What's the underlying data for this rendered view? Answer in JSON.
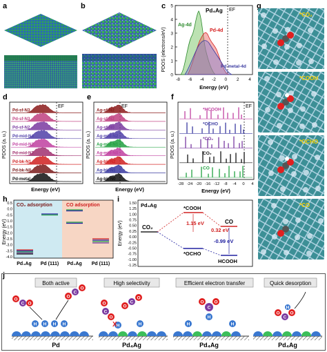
{
  "panel_labels": {
    "a": "a",
    "b": "b",
    "c": "c",
    "d": "d",
    "e": "e",
    "f": "f",
    "g": "g",
    "h": "h",
    "i": "i",
    "j": "j"
  },
  "panel_c": {
    "ylabel": "PDOS (electrons/eV)",
    "xlabel": "Energy (eV)",
    "compound": "Pd₄Ag",
    "fermi": "EF",
    "labels": {
      "ag4d": "Ag-4d",
      "pd4d": "Pd-4d",
      "pdmetal": "Pd metal-4d"
    },
    "yticks": [
      "0",
      "1",
      "2",
      "3",
      "4",
      "5"
    ],
    "xticks": [
      "-8",
      "-6",
      "-4",
      "-2",
      "0",
      "2",
      "4"
    ],
    "colors": {
      "ag": "#2e8b2e",
      "pd": "#d62020",
      "metal": "#3a3aa0"
    }
  },
  "panel_d": {
    "ylabel": "PDOS (a. u.)",
    "xlabel": "Energy (eV)",
    "fermi": "EF",
    "rows": [
      {
        "label": "Pd-sf-N3",
        "color": "#8b1a1a"
      },
      {
        "label": "Pd-sf-N3",
        "color": "#c04080"
      },
      {
        "label": "Pd-sf-N2",
        "color": "#7a3aa0"
      },
      {
        "label": "Pd-mid-N4",
        "color": "#5040a8"
      },
      {
        "label": "Pd-mid-N2",
        "color": "#c040a0"
      },
      {
        "label": "Pd-mid-N2",
        "color": "#a03070"
      },
      {
        "label": "Pd-bk-N1",
        "color": "#d02020"
      },
      {
        "label": "Pd-bk-N0",
        "color": "#7a1a1a"
      },
      {
        "label": "Pd-metal",
        "color": "#111111"
      }
    ]
  },
  "panel_e": {
    "ylabel": "PDOS (a. u.)",
    "xlabel": "Energy (eV)",
    "fermi": "EF",
    "rows": [
      {
        "label": "Ag-sf-N2",
        "color": "#8b1a1a"
      },
      {
        "label": "Ag-sf-N2",
        "color": "#c04080"
      },
      {
        "label": "Ag-sf-N0",
        "color": "#7a3aa0"
      },
      {
        "label": "Ag-mid-N2",
        "color": "#5040a8"
      },
      {
        "label": "Ag-mid-N1",
        "color": "#20a040"
      },
      {
        "label": "Ag-mid-N0",
        "color": "#c040a0"
      },
      {
        "label": "Ag-bk-N2",
        "color": "#d02020"
      },
      {
        "label": "Ag-bk-N1",
        "color": "#3a3aa0"
      },
      {
        "label": "Ag-bk-N0",
        "color": "#111111"
      }
    ]
  },
  "panel_f": {
    "ylabel": "PDOS (a. u.)",
    "xlabel": "Energy (eV)",
    "fermi": "EF",
    "rows": [
      {
        "label": "*HCOOH",
        "color": "#c040a0"
      },
      {
        "label": "*OCHO",
        "color": "#3a3aa0"
      },
      {
        "label": "*CO₂",
        "color": "#7a3aa0"
      },
      {
        "label": "CO₂",
        "color": "#111111"
      },
      {
        "label": "CO",
        "color": "#20a040"
      }
    ],
    "xticks": [
      "-28",
      "-24",
      "-20",
      "-16",
      "-12",
      "-8",
      "-4",
      "0",
      "4"
    ]
  },
  "panel_g": {
    "labels": [
      "*CO₂",
      "*COOH",
      "*OCHO",
      "*CO"
    ]
  },
  "panel_h": {
    "ylabel": "Energy (eV)",
    "co2_title": "CO₂ adsorption",
    "co_title": "CO adsorption",
    "xlabels": [
      "Pd₄Ag",
      "Pd (111)",
      "Pd₄Ag",
      "Pd (111)"
    ],
    "yticks": [
      "0.5",
      "0.0",
      "-0.5",
      "-1.0",
      "-1.5",
      "-2.0",
      "-2.5",
      "-3.0",
      "-3.5",
      "-4.0"
    ]
  },
  "panel_i": {
    "ylabel": "Energy (eV)",
    "compound": "Pd₄Ag",
    "species": {
      "co2": "CO₂",
      "cooh": "*COOH",
      "co": "CO",
      "ocho": "*OCHO",
      "hcooh": "HCOOH"
    },
    "values": {
      "v1": "1.15 eV",
      "v2": "0.32 eV",
      "v3": "-0.99 eV"
    },
    "yticks": [
      "1.50",
      "1.25",
      "1.00",
      "0.75",
      "0.50",
      "0.25",
      "0.00",
      "-0.25",
      "-0.50",
      "-0.75",
      "-1.00",
      "-1.25"
    ]
  },
  "panel_j": {
    "titles": [
      "Both active",
      "High selectivity",
      "Efficient electron transfer",
      "Quick desorption"
    ],
    "bottom_labels": [
      "Pd",
      "Pd₄Ag",
      "Pd₄Ag",
      "Pd₄Ag"
    ],
    "atoms": {
      "c": "C",
      "o": "O",
      "h": "H"
    }
  }
}
